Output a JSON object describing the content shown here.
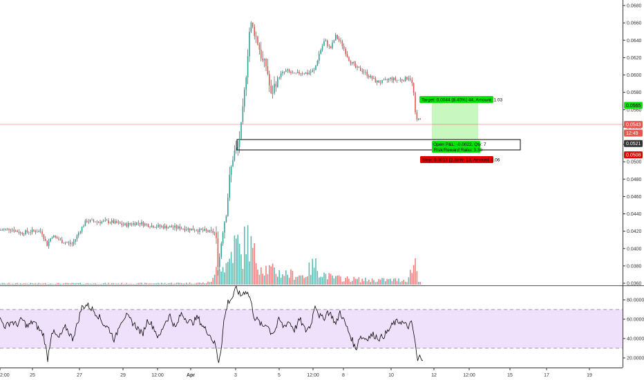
{
  "chart_data": {
    "type": "candlestick",
    "colors": {
      "up": "#26a69a",
      "down": "#ef5350",
      "line": "#000000",
      "rsi_band": "#e9d5f9",
      "target_zone": "#c8f7c0"
    },
    "price_axis": {
      "ylim": [
        0.0358,
        0.0688
      ],
      "tick_labels": [
        "0.0680",
        "0.0660",
        "0.0640",
        "0.0620",
        "0.0600",
        "0.0580",
        "0.0560",
        "0.0540",
        "0.0520",
        "0.0500",
        "0.0480",
        "0.0460",
        "0.0440",
        "0.0420",
        "0.0400",
        "0.0380",
        "0.0360"
      ],
      "tick_values": [
        0.068,
        0.066,
        0.064,
        0.062,
        0.06,
        0.058,
        0.056,
        0.054,
        0.052,
        0.05,
        0.048,
        0.046,
        0.044,
        0.042,
        0.04,
        0.038,
        0.036
      ],
      "price_tags": [
        {
          "label": "0.0565",
          "value": 0.0565,
          "color": "#00e600",
          "text_color": "#000000"
        },
        {
          "label": "0.0543",
          "value": 0.0543,
          "color": "#ef5350",
          "text_color": "#ffffff"
        },
        {
          "label": "12:49",
          "value": 0.0533,
          "color": "#ef5350",
          "text_color": "#ffffff"
        },
        {
          "label": "0.0521",
          "value": 0.0521,
          "color": "#333333",
          "text_color": "#ffffff"
        },
        {
          "label": "0.0508",
          "value": 0.0508,
          "color": "#e00000",
          "text_color": "#ffffff"
        }
      ]
    },
    "rsi_axis": {
      "ylim": [
        12,
        98
      ],
      "tick_labels": [
        "80.0000",
        "60.0000",
        "40.0000",
        "20.0000"
      ],
      "tick_values": [
        80,
        60,
        40,
        20
      ],
      "band": [
        30,
        70
      ]
    },
    "time_axis": {
      "labels": [
        "2:00",
        "25",
        "27",
        "29",
        "12:00",
        "Apr",
        "3",
        "5",
        "12:00",
        "8",
        "10",
        "12",
        "12:00",
        "15",
        "17",
        "19"
      ],
      "positions": [
        0,
        47,
        115,
        178,
        228,
        276,
        341,
        404,
        453,
        497,
        566,
        628,
        679,
        738,
        791,
        853
      ]
    },
    "anchors": [
      [
        0,
        0.0421
      ],
      [
        15,
        0.0423
      ],
      [
        30,
        0.0418
      ],
      [
        45,
        0.042
      ],
      [
        60,
        0.042
      ],
      [
        68,
        0.0404
      ],
      [
        75,
        0.0415
      ],
      [
        90,
        0.0408
      ],
      [
        105,
        0.0405
      ],
      [
        115,
        0.042
      ],
      [
        125,
        0.0432
      ],
      [
        140,
        0.0431
      ],
      [
        160,
        0.0431
      ],
      [
        180,
        0.0427
      ],
      [
        200,
        0.043
      ],
      [
        220,
        0.0426
      ],
      [
        240,
        0.0425
      ],
      [
        260,
        0.0424
      ],
      [
        280,
        0.0422
      ],
      [
        300,
        0.042
      ],
      [
        312,
        0.0418
      ],
      [
        316,
        0.0378
      ],
      [
        322,
        0.042
      ],
      [
        328,
        0.0445
      ],
      [
        332,
        0.048
      ],
      [
        338,
        0.051
      ],
      [
        344,
        0.0515
      ],
      [
        350,
        0.0545
      ],
      [
        356,
        0.06
      ],
      [
        362,
        0.066
      ],
      [
        368,
        0.065
      ],
      [
        374,
        0.0635
      ],
      [
        380,
        0.0615
      ],
      [
        386,
        0.061
      ],
      [
        392,
        0.0575
      ],
      [
        398,
        0.059
      ],
      [
        405,
        0.06
      ],
      [
        415,
        0.0605
      ],
      [
        425,
        0.06
      ],
      [
        435,
        0.0603
      ],
      [
        445,
        0.0602
      ],
      [
        455,
        0.0605
      ],
      [
        462,
        0.0625
      ],
      [
        470,
        0.064
      ],
      [
        478,
        0.063
      ],
      [
        486,
        0.0645
      ],
      [
        495,
        0.0635
      ],
      [
        505,
        0.0618
      ],
      [
        515,
        0.0608
      ],
      [
        525,
        0.0605
      ],
      [
        535,
        0.0598
      ],
      [
        545,
        0.0592
      ],
      [
        555,
        0.0592
      ],
      [
        565,
        0.0596
      ],
      [
        575,
        0.0594
      ],
      [
        585,
        0.0595
      ],
      [
        593,
        0.0598
      ],
      [
        598,
        0.0585
      ],
      [
        602,
        0.0545
      ],
      [
        606,
        0.0552
      ],
      [
        610,
        0.0543
      ]
    ],
    "volume_anchors": [
      [
        0,
        2
      ],
      [
        100,
        2
      ],
      [
        200,
        2
      ],
      [
        300,
        3
      ],
      [
        310,
        10
      ],
      [
        316,
        45
      ],
      [
        322,
        30
      ],
      [
        330,
        35
      ],
      [
        336,
        60
      ],
      [
        344,
        70
      ],
      [
        350,
        40
      ],
      [
        356,
        85
      ],
      [
        364,
        60
      ],
      [
        372,
        40
      ],
      [
        380,
        30
      ],
      [
        392,
        25
      ],
      [
        405,
        20
      ],
      [
        420,
        18
      ],
      [
        440,
        15
      ],
      [
        455,
        35
      ],
      [
        465,
        20
      ],
      [
        480,
        12
      ],
      [
        500,
        10
      ],
      [
        530,
        8
      ],
      [
        560,
        8
      ],
      [
        590,
        8
      ],
      [
        601,
        42
      ],
      [
        605,
        10
      ],
      [
        610,
        5
      ]
    ],
    "rsi_anchors": [
      [
        0,
        60
      ],
      [
        8,
        52
      ],
      [
        16,
        58
      ],
      [
        24,
        54
      ],
      [
        32,
        60
      ],
      [
        40,
        52
      ],
      [
        48,
        58
      ],
      [
        56,
        50
      ],
      [
        63,
        44
      ],
      [
        69,
        19
      ],
      [
        75,
        48
      ],
      [
        85,
        40
      ],
      [
        95,
        52
      ],
      [
        105,
        40
      ],
      [
        112,
        55
      ],
      [
        118,
        72
      ],
      [
        126,
        75
      ],
      [
        134,
        70
      ],
      [
        142,
        64
      ],
      [
        150,
        55
      ],
      [
        158,
        50
      ],
      [
        166,
        38
      ],
      [
        174,
        57
      ],
      [
        182,
        64
      ],
      [
        190,
        58
      ],
      [
        198,
        52
      ],
      [
        206,
        44
      ],
      [
        214,
        60
      ],
      [
        222,
        52
      ],
      [
        230,
        40
      ],
      [
        238,
        56
      ],
      [
        246,
        64
      ],
      [
        254,
        50
      ],
      [
        262,
        66
      ],
      [
        270,
        60
      ],
      [
        278,
        56
      ],
      [
        286,
        62
      ],
      [
        294,
        52
      ],
      [
        302,
        46
      ],
      [
        308,
        38
      ],
      [
        312,
        33
      ],
      [
        316,
        15
      ],
      [
        320,
        30
      ],
      [
        324,
        58
      ],
      [
        330,
        78
      ],
      [
        336,
        82
      ],
      [
        342,
        92
      ],
      [
        348,
        84
      ],
      [
        356,
        90
      ],
      [
        362,
        82
      ],
      [
        368,
        62
      ],
      [
        374,
        58
      ],
      [
        380,
        52
      ],
      [
        386,
        56
      ],
      [
        392,
        46
      ],
      [
        398,
        48
      ],
      [
        404,
        60
      ],
      [
        410,
        52
      ],
      [
        418,
        58
      ],
      [
        426,
        49
      ],
      [
        434,
        60
      ],
      [
        442,
        48
      ],
      [
        450,
        54
      ],
      [
        456,
        76
      ],
      [
        462,
        64
      ],
      [
        468,
        60
      ],
      [
        474,
        68
      ],
      [
        480,
        64
      ],
      [
        486,
        54
      ],
      [
        492,
        68
      ],
      [
        498,
        58
      ],
      [
        504,
        48
      ],
      [
        510,
        38
      ],
      [
        515,
        28
      ],
      [
        520,
        42
      ],
      [
        530,
        40
      ],
      [
        540,
        44
      ],
      [
        550,
        40
      ],
      [
        560,
        46
      ],
      [
        570,
        56
      ],
      [
        580,
        58
      ],
      [
        590,
        52
      ],
      [
        596,
        56
      ],
      [
        600,
        40
      ],
      [
        604,
        16
      ],
      [
        608,
        22
      ],
      [
        612,
        20
      ]
    ]
  },
  "position": {
    "target_label": "Target: 0.0044 (8.45%) 44, Amount: 1.03",
    "pnl_label": "Open P&L: -0.0022, Qty: 7",
    "ratio_label": "Risk/Reward Ratio: 3.38",
    "stop_label": "Stop: 0.0013 (2.58%) 13, Amount: 0.06"
  }
}
